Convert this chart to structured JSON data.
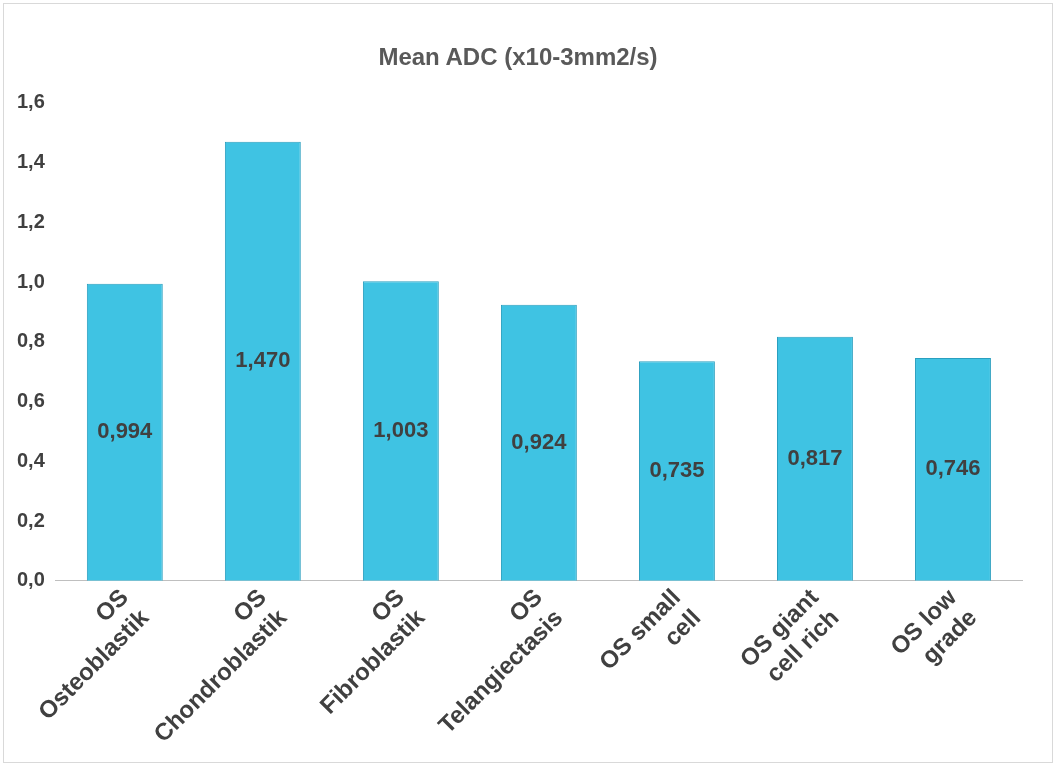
{
  "chart_data": {
    "type": "bar",
    "title": "Mean ADC (x10-3mm2/s)",
    "categories": [
      "OS Osteoblastik",
      "OS Chondroblastik",
      "OS Fibroblastik",
      "OS Telangiectasis",
      "OS small cell",
      "OS giant cell rich",
      "OS low grade"
    ],
    "values": [
      0.994,
      1.47,
      1.003,
      0.924,
      0.735,
      0.817,
      0.746
    ],
    "value_labels": [
      "0,994",
      "1,470",
      "1,003",
      "0,924",
      "0,735",
      "0,817",
      "0,746"
    ],
    "color": "#3fc3e3",
    "ylim": [
      0,
      1.6
    ],
    "yticks": [
      {
        "value": 0,
        "label": "0,0"
      },
      {
        "value": 0.2,
        "label": "0,2"
      },
      {
        "value": 0.4,
        "label": "0,4"
      },
      {
        "value": 0.6,
        "label": "0,6"
      },
      {
        "value": 0.8,
        "label": "0,8"
      },
      {
        "value": 1,
        "label": "1,0"
      },
      {
        "value": 1.2,
        "label": "1,2"
      },
      {
        "value": 1.4,
        "label": "1,4"
      },
      {
        "value": 1.6,
        "label": "1,6"
      }
    ],
    "grid": false,
    "legend": false
  }
}
